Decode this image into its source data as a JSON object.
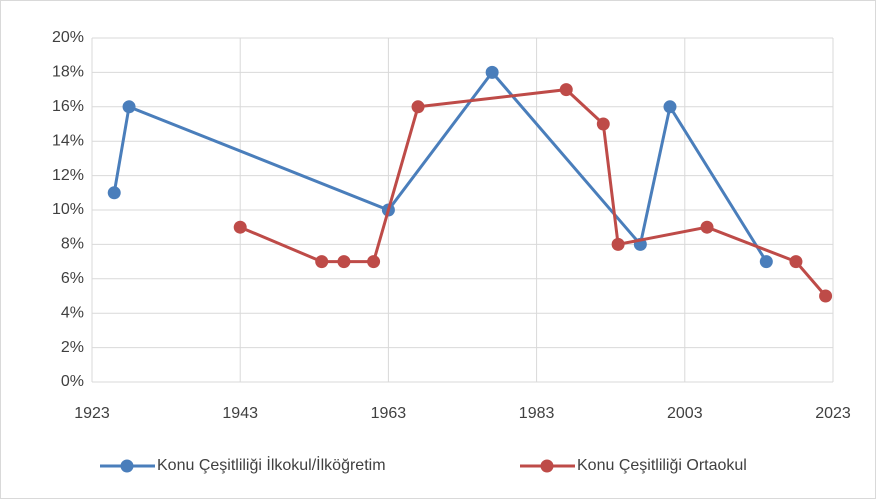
{
  "chart_data": {
    "type": "line",
    "series": [
      {
        "name": "Konu Çeşitliliği İlkokul/İlköğretim",
        "color": "#4a7ebb",
        "x": [
          1926,
          1928,
          1963,
          1977,
          1997,
          2001,
          2014
        ],
        "values": [
          11,
          16,
          10,
          18,
          8,
          16,
          7
        ]
      },
      {
        "name": "Konu Çeşitliliği Ortaokul",
        "color": "#be4b48",
        "x": [
          1943,
          1954,
          1957,
          1961,
          1967,
          1987,
          1992,
          1994,
          2006,
          2018,
          2022
        ],
        "values": [
          9,
          7,
          7,
          7,
          16,
          17,
          15,
          8,
          9,
          7,
          5
        ]
      }
    ],
    "xlim": [
      1923,
      2023
    ],
    "xticks": [
      1923,
      1943,
      1963,
      1983,
      2003,
      2023
    ],
    "ylim": [
      0,
      20
    ],
    "yticks": [
      {
        "value": 0,
        "label": "0%"
      },
      {
        "value": 2,
        "label": "2%"
      },
      {
        "value": 4,
        "label": "4%"
      },
      {
        "value": 6,
        "label": "6%"
      },
      {
        "value": 8,
        "label": "8%"
      },
      {
        "value": 10,
        "label": "10%"
      },
      {
        "value": 12,
        "label": "12%"
      },
      {
        "value": 14,
        "label": "14%"
      },
      {
        "value": 16,
        "label": "16%"
      },
      {
        "value": 18,
        "label": "18%"
      },
      {
        "value": 20,
        "label": "20%"
      }
    ],
    "grid": true,
    "legend": "bottom"
  }
}
